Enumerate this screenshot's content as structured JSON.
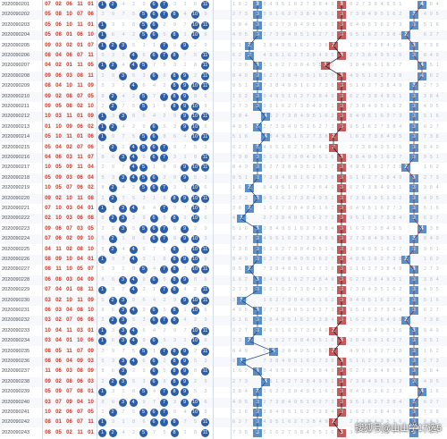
{
  "watermark": "搜狐号@山山学17选5",
  "rows": [
    {
      "issue": "2020090201",
      "draws": [
        "07",
        "02",
        "06",
        "11",
        "01"
      ],
      "balls": [
        1,
        2,
        6,
        7,
        11
      ],
      "z1": 3,
      "z2": 3,
      "z3": 4
    },
    {
      "issue": "2020090202",
      "draws": [
        "05",
        "08",
        "10",
        "07",
        "06"
      ],
      "balls": [
        5,
        6,
        7,
        8,
        10
      ],
      "z1": 3,
      "z2": 3,
      "z3": 3
    },
    {
      "issue": "2020090203",
      "draws": [
        "05",
        "06",
        "10",
        "11",
        "01"
      ],
      "balls": [
        1,
        5,
        6,
        10,
        11
      ],
      "z1": 3,
      "z2": 3,
      "z3": 3
    },
    {
      "issue": "2020090204",
      "draws": [
        "05",
        "08",
        "01",
        "06",
        "10"
      ],
      "balls": [
        1,
        5,
        6,
        8,
        10
      ],
      "z1": 3,
      "z2": 3,
      "z3": 2
    },
    {
      "issue": "2020090205",
      "draws": [
        "09",
        "03",
        "02",
        "01",
        "07"
      ],
      "balls": [
        1,
        2,
        3,
        7,
        9
      ],
      "z1": 2,
      "z2": 2,
      "z3": 3
    },
    {
      "issue": "2020090206",
      "draws": [
        "08",
        "04",
        "06",
        "07",
        "11"
      ],
      "balls": [
        4,
        6,
        7,
        8,
        11
      ],
      "z1": 2,
      "z2": 3,
      "z3": 3
    },
    {
      "issue": "2020090207",
      "draws": [
        "04",
        "02",
        "01",
        "11",
        "05"
      ],
      "balls": [
        1,
        2,
        4,
        5,
        11
      ],
      "z1": 3,
      "z2": 1,
      "z3": 4
    },
    {
      "issue": "2020090208",
      "draws": [
        "09",
        "06",
        "03",
        "08",
        "11"
      ],
      "balls": [
        3,
        6,
        8,
        9,
        11
      ],
      "z1": 3,
      "z2": 3,
      "z3": 4
    },
    {
      "issue": "2020090209",
      "draws": [
        "08",
        "04",
        "10",
        "11",
        "09"
      ],
      "balls": [
        4,
        8,
        9,
        10,
        11
      ],
      "z1": 3,
      "z2": 3,
      "z3": 3
    },
    {
      "issue": "2020090210",
      "draws": [
        "09",
        "02",
        "08",
        "07",
        "05"
      ],
      "balls": [
        2,
        5,
        7,
        8,
        9
      ],
      "z1": 3,
      "z2": 3,
      "z3": 3
    },
    {
      "issue": "2020090211",
      "draws": [
        "09",
        "05",
        "08",
        "02",
        "10"
      ],
      "balls": [
        2,
        5,
        8,
        9,
        10
      ],
      "z1": 3,
      "z2": 3,
      "z3": 3
    },
    {
      "issue": "2020090212",
      "draws": [
        "10",
        "03",
        "11",
        "01",
        "09"
      ],
      "balls": [
        1,
        3,
        9,
        10,
        11
      ],
      "z1": 4,
      "z2": 3,
      "z3": 3
    },
    {
      "issue": "2020090213",
      "draws": [
        "01",
        "10",
        "09",
        "06",
        "02"
      ],
      "balls": [
        1,
        2,
        6,
        9,
        10
      ],
      "z1": 3,
      "z2": 3,
      "z3": 3
    },
    {
      "issue": "2020090214",
      "draws": [
        "05",
        "10",
        "11",
        "01",
        "06"
      ],
      "balls": [
        1,
        5,
        6,
        10,
        11
      ],
      "z1": 4,
      "z2": 2,
      "z3": 3
    },
    {
      "issue": "2020090215",
      "draws": [
        "05",
        "04",
        "02",
        "07",
        "06"
      ],
      "balls": [
        2,
        4,
        5,
        6,
        7
      ],
      "z1": 3,
      "z2": 2,
      "z3": 3
    },
    {
      "issue": "2020090216",
      "draws": [
        "04",
        "06",
        "03",
        "11",
        "07"
      ],
      "balls": [
        3,
        4,
        6,
        7,
        11
      ],
      "z1": 3,
      "z2": 3,
      "z3": 3
    },
    {
      "issue": "2020090217",
      "draws": [
        "10",
        "05",
        "09",
        "11",
        "04"
      ],
      "balls": [
        4,
        5,
        9,
        10,
        11
      ],
      "z1": 3,
      "z2": 3,
      "z3": 2
    },
    {
      "issue": "2020090218",
      "draws": [
        "05",
        "09",
        "03",
        "06",
        "04"
      ],
      "balls": [
        3,
        4,
        5,
        6,
        9
      ],
      "z1": 3,
      "z2": 3,
      "z3": 3
    },
    {
      "issue": "2020090219",
      "draws": [
        "10",
        "05",
        "07",
        "06",
        "02"
      ],
      "balls": [
        2,
        5,
        6,
        7,
        10
      ],
      "z1": 2,
      "z2": 3,
      "z3": 3
    },
    {
      "issue": "2020090220",
      "draws": [
        "09",
        "02",
        "10",
        "11",
        "08"
      ],
      "balls": [
        2,
        8,
        9,
        10,
        11
      ],
      "z1": 3,
      "z2": 3,
      "z3": 3
    },
    {
      "issue": "2020090221",
      "draws": [
        "07",
        "10",
        "03",
        "04",
        "01"
      ],
      "balls": [
        1,
        3,
        4,
        7,
        10
      ],
      "z1": 2,
      "z2": 3,
      "z3": 3
    },
    {
      "issue": "2020090222",
      "draws": [
        "02",
        "10",
        "03",
        "06",
        "08"
      ],
      "balls": [
        2,
        3,
        6,
        8,
        10
      ],
      "z1": 1,
      "z2": 3,
      "z3": 3
    },
    {
      "issue": "2020090223",
      "draws": [
        "09",
        "06",
        "07",
        "03",
        "05"
      ],
      "balls": [
        3,
        5,
        6,
        7,
        9
      ],
      "z1": 3,
      "z2": 3,
      "z3": 4
    },
    {
      "issue": "2020090224",
      "draws": [
        "07",
        "06",
        "02",
        "09",
        "10"
      ],
      "balls": [
        2,
        6,
        7,
        9,
        10
      ],
      "z1": 3,
      "z2": 3,
      "z3": 3
    },
    {
      "issue": "2020090225",
      "draws": [
        "04",
        "11",
        "02",
        "08",
        "10"
      ],
      "balls": [
        2,
        4,
        8,
        10,
        11
      ],
      "z1": 3,
      "z2": 3,
      "z3": 3
    },
    {
      "issue": "2020090226",
      "draws": [
        "08",
        "09",
        "10",
        "04",
        "01"
      ],
      "balls": [
        1,
        4,
        8,
        9,
        10
      ],
      "z1": 3,
      "z2": 3,
      "z3": 2
    },
    {
      "issue": "2020090227",
      "draws": [
        "08",
        "11",
        "10",
        "05",
        "07"
      ],
      "balls": [
        5,
        7,
        8,
        10,
        11
      ],
      "z1": 2,
      "z2": 3,
      "z3": 3
    },
    {
      "issue": "2020090228",
      "draws": [
        "06",
        "08",
        "03",
        "04",
        "09"
      ],
      "balls": [
        3,
        4,
        6,
        8,
        9
      ],
      "z1": 3,
      "z2": 3,
      "z3": 3
    },
    {
      "issue": "2020090229",
      "draws": [
        "07",
        "04",
        "01",
        "08",
        "11"
      ],
      "balls": [
        1,
        4,
        7,
        8,
        11
      ],
      "z1": 3,
      "z2": 3,
      "z3": 3
    },
    {
      "issue": "2020090230",
      "draws": [
        "03",
        "02",
        "10",
        "11",
        "09"
      ],
      "balls": [
        2,
        3,
        9,
        10,
        11
      ],
      "z1": 1,
      "z2": 3,
      "z3": 3
    },
    {
      "issue": "2020090231",
      "draws": [
        "06",
        "03",
        "04",
        "08",
        "10"
      ],
      "balls": [
        3,
        4,
        6,
        8,
        10
      ],
      "z1": 3,
      "z2": 3,
      "z3": 3
    },
    {
      "issue": "2020090232",
      "draws": [
        "03",
        "02",
        "07",
        "06",
        "08"
      ],
      "balls": [
        2,
        3,
        6,
        7,
        8
      ],
      "z1": 3,
      "z2": 3,
      "z3": 2
    },
    {
      "issue": "2020090233",
      "draws": [
        "10",
        "04",
        "11",
        "03",
        "01"
      ],
      "balls": [
        1,
        3,
        4,
        10,
        11
      ],
      "z1": 3,
      "z2": 2,
      "z3": 3
    },
    {
      "issue": "2020090234",
      "draws": [
        "03",
        "04",
        "01",
        "10",
        "06"
      ],
      "balls": [
        1,
        3,
        4,
        6,
        10
      ],
      "z1": 2,
      "z2": 3,
      "z3": 3
    },
    {
      "issue": "2020090235",
      "draws": [
        "08",
        "05",
        "11",
        "07",
        "09"
      ],
      "balls": [
        5,
        7,
        8,
        9,
        11
      ],
      "z1": 5,
      "z2": 2,
      "z3": 3
    },
    {
      "issue": "2020090236",
      "draws": [
        "08",
        "06",
        "04",
        "09",
        "03"
      ],
      "balls": [
        3,
        4,
        6,
        8,
        9
      ],
      "z1": 1,
      "z2": 3,
      "z3": 3
    },
    {
      "issue": "2020090237",
      "draws": [
        "11",
        "06",
        "03",
        "08",
        "09"
      ],
      "balls": [
        3,
        6,
        8,
        9,
        11
      ],
      "z1": 3,
      "z2": 3,
      "z3": 3
    },
    {
      "issue": "2020090238",
      "draws": [
        "09",
        "02",
        "08",
        "06",
        "03"
      ],
      "balls": [
        2,
        3,
        6,
        8,
        9
      ],
      "z1": 4,
      "z2": 3,
      "z3": 3
    },
    {
      "issue": "2020090239",
      "draws": [
        "05",
        "09",
        "07",
        "08",
        "01"
      ],
      "balls": [
        1,
        5,
        7,
        8,
        9
      ],
      "z1": 3,
      "z2": 3,
      "z3": 4
    },
    {
      "issue": "2020090240",
      "draws": [
        "03",
        "07",
        "09",
        "04",
        "10"
      ],
      "balls": [
        3,
        4,
        7,
        9,
        10
      ],
      "z1": 3,
      "z2": 3,
      "z3": 3
    },
    {
      "issue": "2020090241",
      "draws": [
        "10",
        "02",
        "06",
        "07",
        "05"
      ],
      "balls": [
        2,
        5,
        6,
        7,
        10
      ],
      "z1": 3,
      "z2": 3,
      "z3": 3
    },
    {
      "issue": "2020090242",
      "draws": [
        "08",
        "01",
        "06",
        "07",
        "11"
      ],
      "balls": [
        1,
        6,
        7,
        8,
        11
      ],
      "z1": 3,
      "z2": 2,
      "z3": 3
    },
    {
      "issue": "2020090243",
      "draws": [
        "08",
        "05",
        "02",
        "11",
        "01"
      ],
      "balls": [
        1,
        2,
        5,
        8,
        11
      ],
      "z1": 3,
      "z2": 3,
      "z3": 3
    }
  ]
}
